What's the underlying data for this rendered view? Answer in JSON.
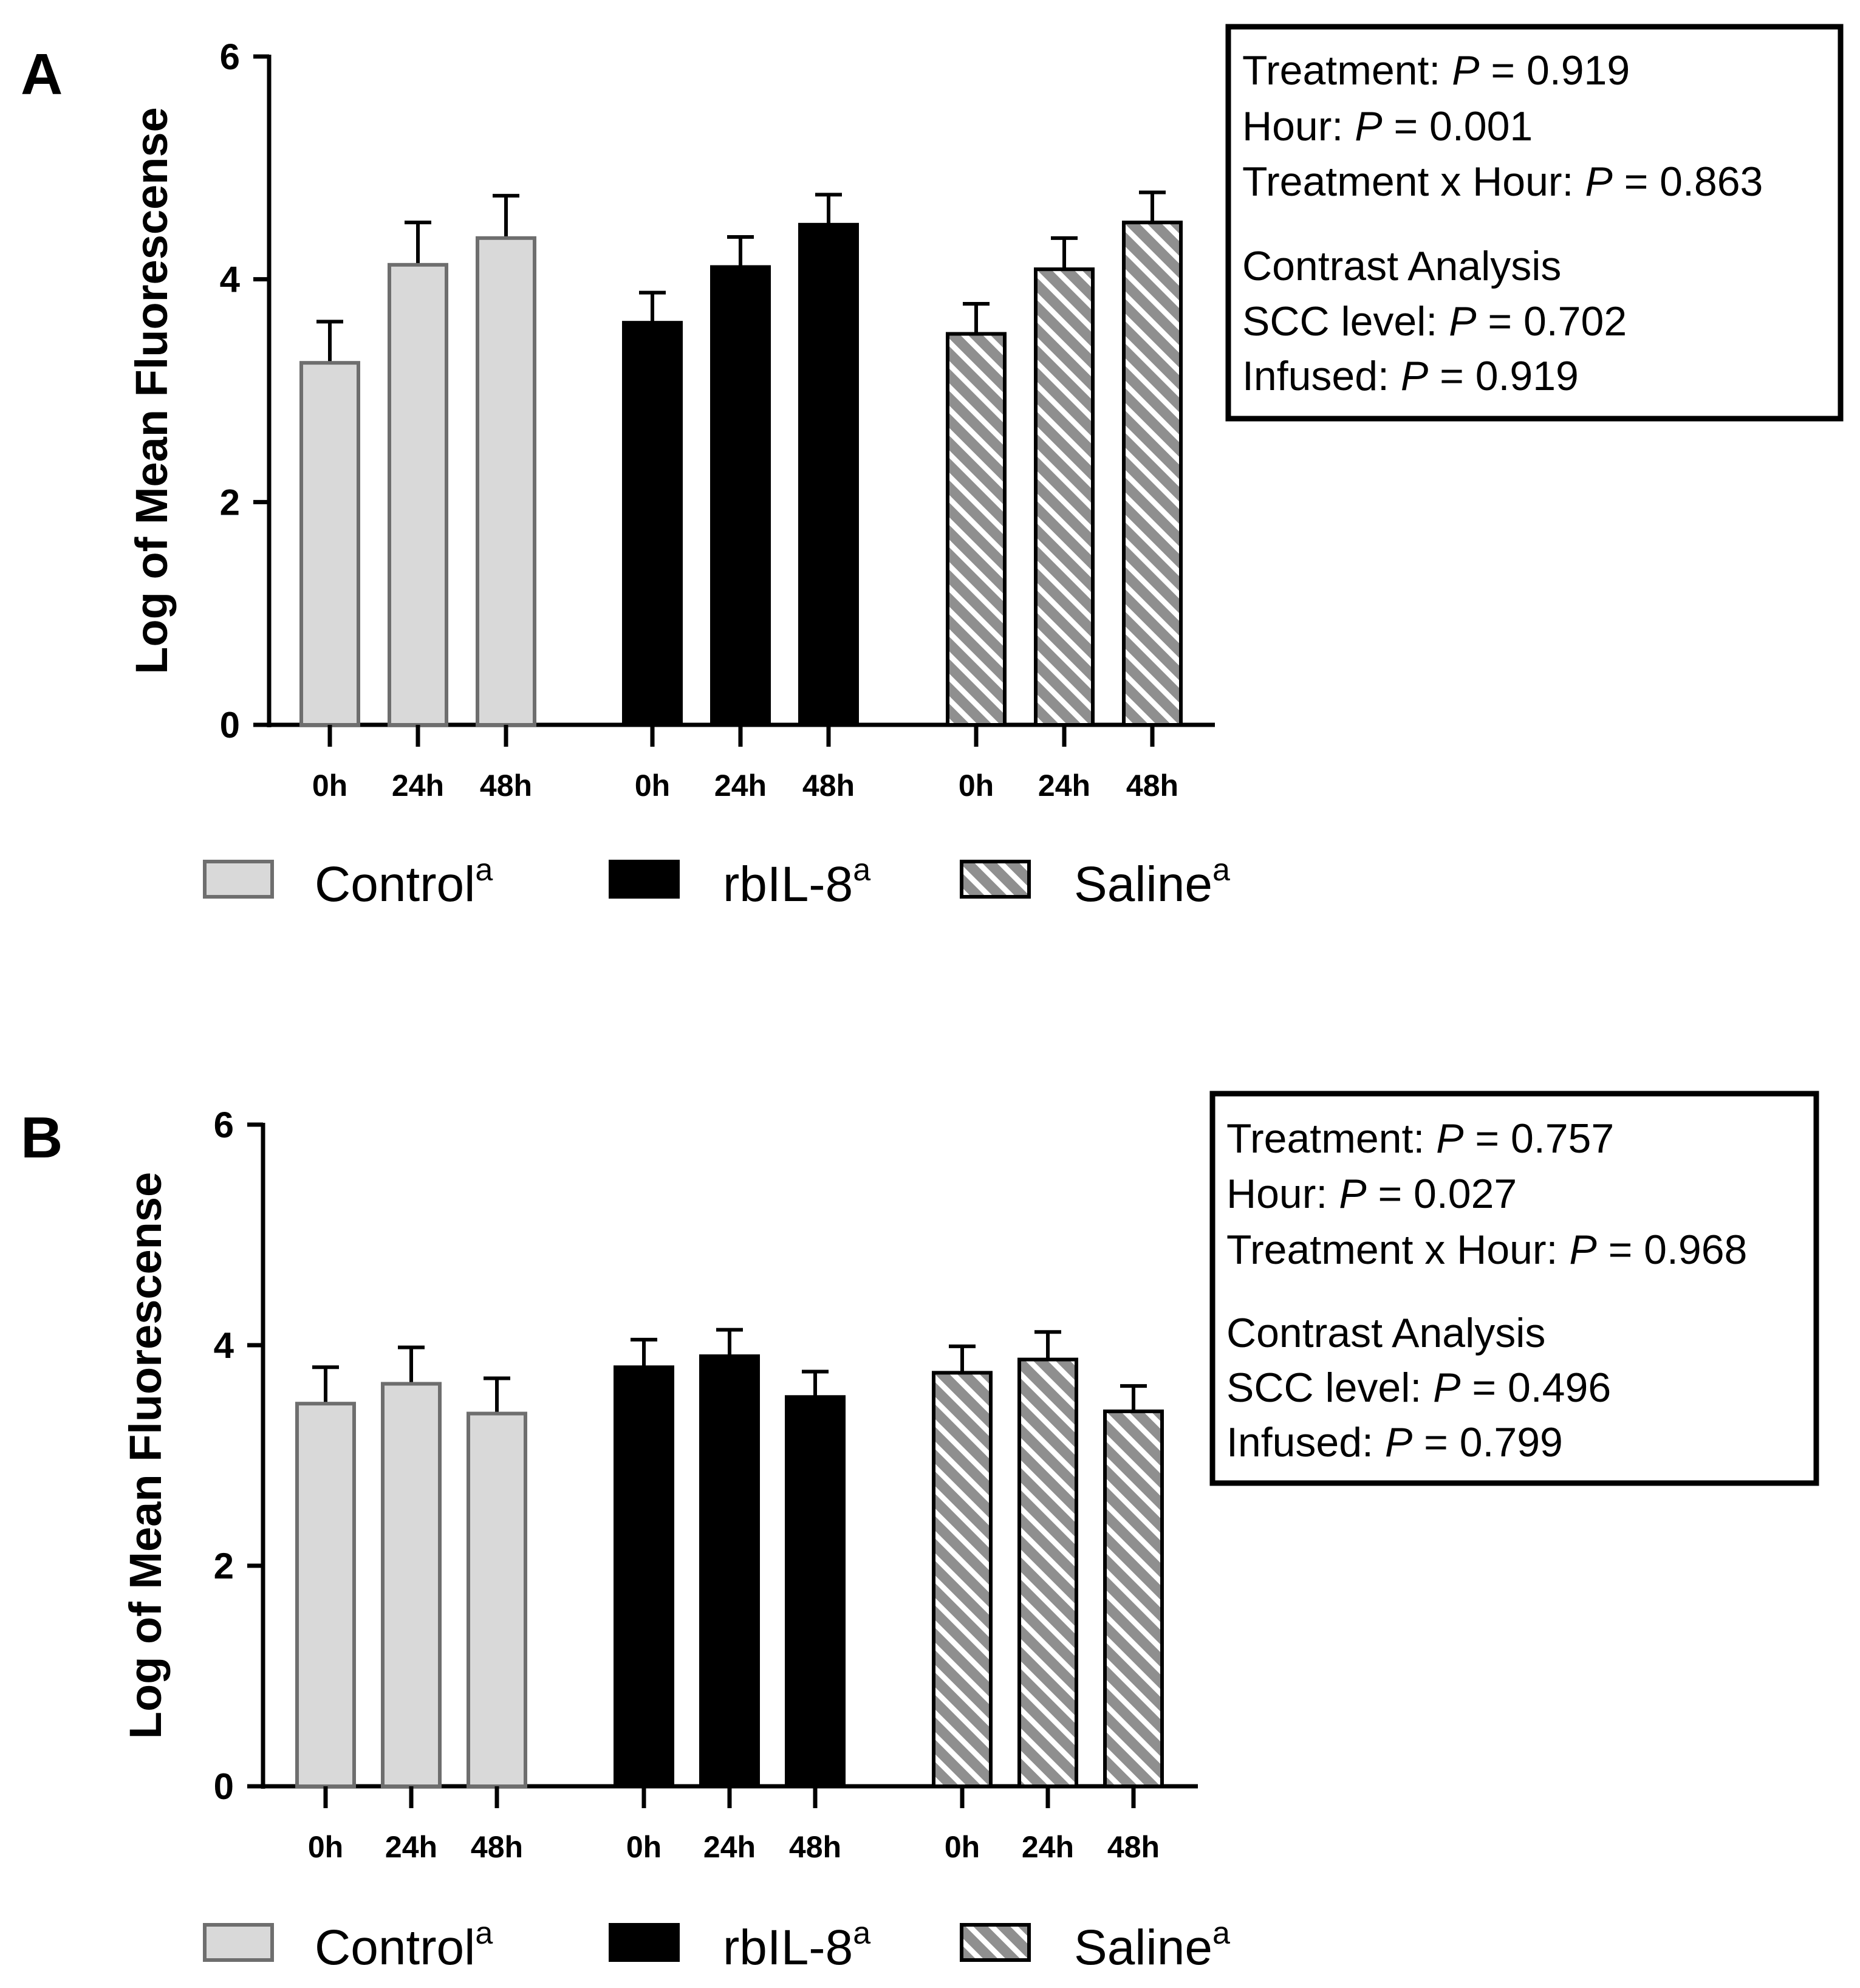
{
  "colors": {
    "control": "#d9d9d9",
    "control_edge": "#6e6e6e",
    "rbil8": "#000000",
    "saline_bg": "#8f8f8f",
    "saline_stripe": "#ffffff",
    "axis": "#000000"
  },
  "legend": [
    {
      "key": "control",
      "label": "Control",
      "superscript": "a"
    },
    {
      "key": "rbil8",
      "label": "rbIL-8",
      "superscript": "a"
    },
    {
      "key": "saline",
      "label": "Saline",
      "superscript": "a"
    }
  ],
  "chart_data": [
    {
      "panel": "A",
      "type": "bar",
      "ylabel": "Log of Mean Fluorescense",
      "ylim": [
        0,
        6
      ],
      "yticks": [
        "0",
        "2",
        "4",
        "6"
      ],
      "categories": [
        "0h",
        "24h",
        "48h"
      ],
      "series": [
        {
          "name": "Control",
          "key": "control",
          "values": [
            3.25,
            4.13,
            4.37
          ],
          "errors": [
            0.37,
            0.38,
            0.38
          ]
        },
        {
          "name": "rbIL-8",
          "key": "rbil8",
          "values": [
            3.61,
            4.11,
            4.49
          ],
          "errors": [
            0.27,
            0.27,
            0.27
          ]
        },
        {
          "name": "Saline",
          "key": "saline",
          "values": [
            3.51,
            4.09,
            4.51
          ],
          "errors": [
            0.27,
            0.28,
            0.27
          ]
        }
      ],
      "stats": {
        "lines": [
          {
            "prefix": "Treatment: ",
            "p": "P",
            "suffix": " = 0.919"
          },
          {
            "prefix": "Hour: ",
            "p": "P",
            "suffix": " = 0.001"
          },
          {
            "prefix": "Treatment x Hour: ",
            "p": "P",
            "suffix": " = 0.863"
          }
        ],
        "contrast_title": "Contrast Analysis",
        "contrast_lines": [
          {
            "prefix": "SCC level: ",
            "p": "P",
            "suffix": " = 0.702"
          },
          {
            "prefix": "Infused: ",
            "p": "P",
            "suffix": " = 0.919"
          }
        ]
      }
    },
    {
      "panel": "B",
      "type": "bar",
      "ylabel": "Log of Mean Fluorescense",
      "ylim": [
        0,
        6
      ],
      "yticks": [
        "0",
        "2",
        "4",
        "6"
      ],
      "categories": [
        "0h",
        "24h",
        "48h"
      ],
      "series": [
        {
          "name": "Control",
          "key": "control",
          "values": [
            3.47,
            3.65,
            3.38
          ],
          "errors": [
            0.33,
            0.33,
            0.32
          ]
        },
        {
          "name": "rbIL-8",
          "key": "rbil8",
          "values": [
            3.8,
            3.9,
            3.53
          ],
          "errors": [
            0.25,
            0.24,
            0.23
          ]
        },
        {
          "name": "Saline",
          "key": "saline",
          "values": [
            3.75,
            3.87,
            3.4
          ],
          "errors": [
            0.24,
            0.25,
            0.23
          ]
        }
      ],
      "stats": {
        "lines": [
          {
            "prefix": "Treatment: ",
            "p": "P",
            "suffix": " = 0.757"
          },
          {
            "prefix": "Hour: ",
            "p": "P",
            "suffix": " = 0.027"
          },
          {
            "prefix": "Treatment x Hour: ",
            "p": "P",
            "suffix": " = 0.968"
          }
        ],
        "contrast_title": "Contrast Analysis",
        "contrast_lines": [
          {
            "prefix": "SCC level: ",
            "p": "P",
            "suffix": " = 0.496"
          },
          {
            "prefix": "Infused: ",
            "p": "P",
            "suffix": " = 0.799"
          }
        ]
      }
    }
  ]
}
